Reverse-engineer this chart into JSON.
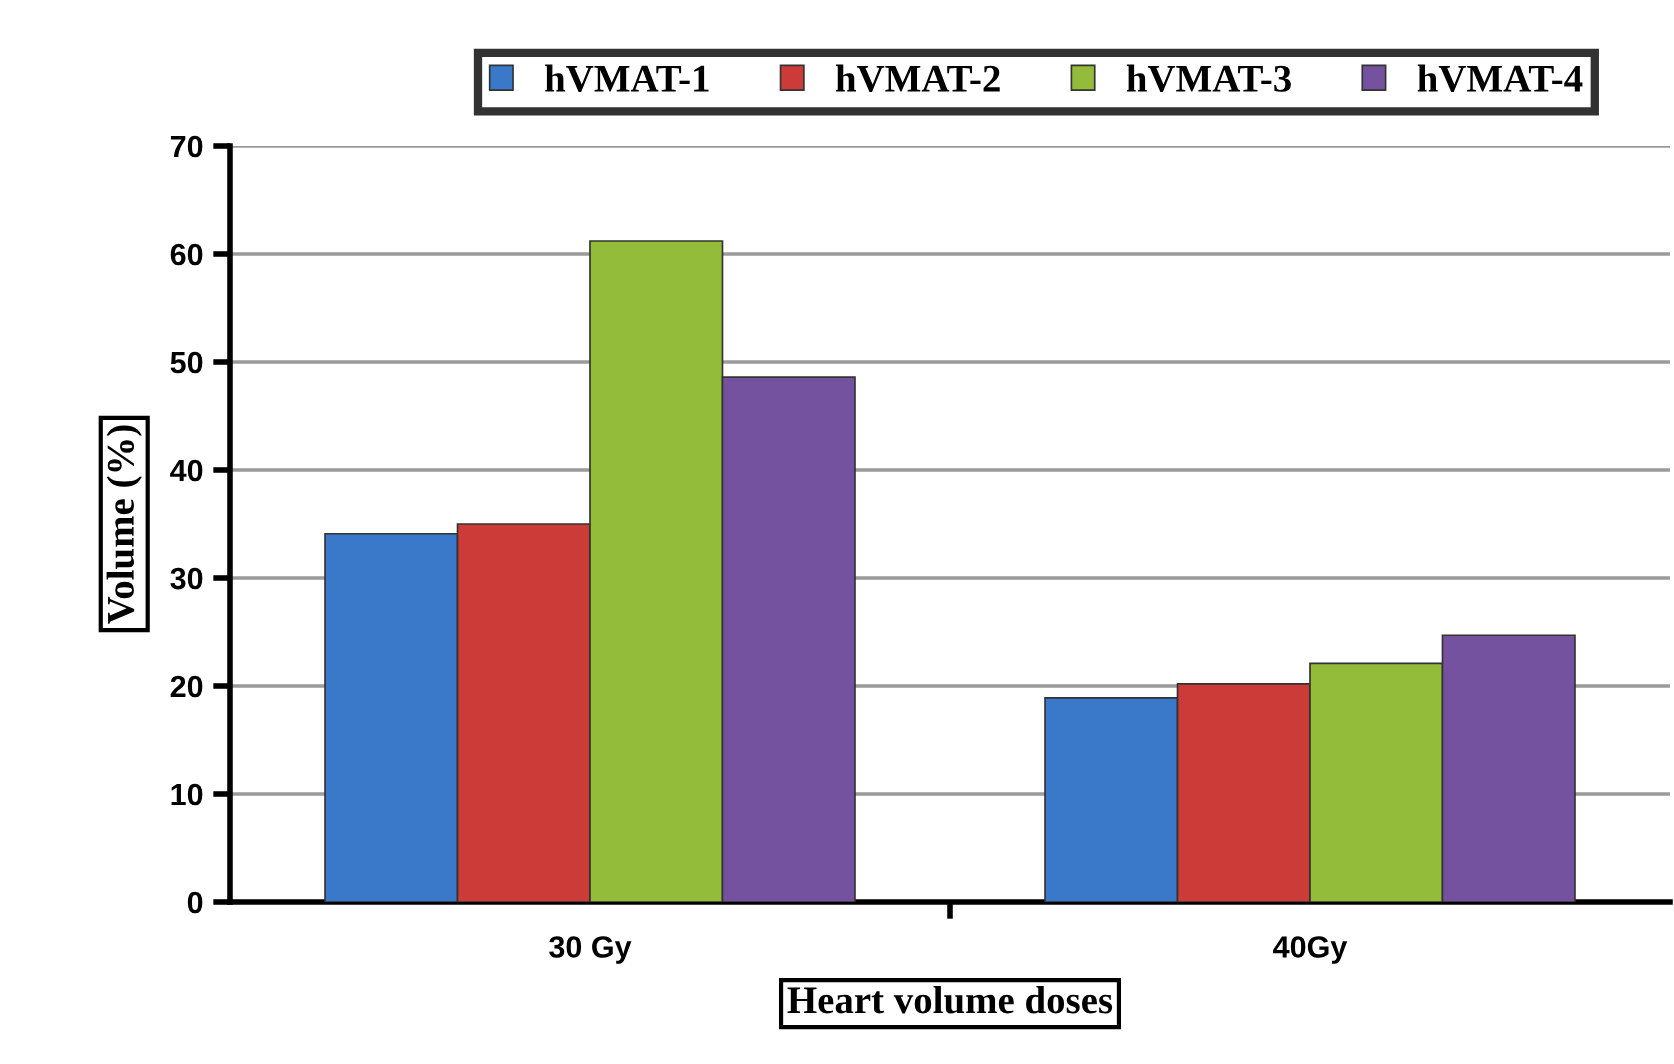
{
  "chart_data": {
    "type": "bar",
    "categories": [
      "30 Gy",
      "40Gy"
    ],
    "series": [
      {
        "name": "hVMAT-1",
        "color": "#3a78c9",
        "values": [
          34.1,
          18.9
        ]
      },
      {
        "name": "hVMAT-2",
        "color": "#cc3b38",
        "values": [
          35.0,
          20.2
        ]
      },
      {
        "name": "hVMAT-3",
        "color": "#93bc3a",
        "values": [
          61.2,
          22.1
        ]
      },
      {
        "name": "hVMAT-4",
        "color": "#7552a0",
        "values": [
          48.6,
          24.7
        ]
      }
    ],
    "xlabel": "Heart volume doses",
    "ylabel": "Volume (%)",
    "ylim": [
      0,
      70
    ],
    "yticks": [
      0,
      10,
      20,
      30,
      40,
      50,
      60,
      70
    ],
    "grid": "y",
    "legend": "top"
  }
}
